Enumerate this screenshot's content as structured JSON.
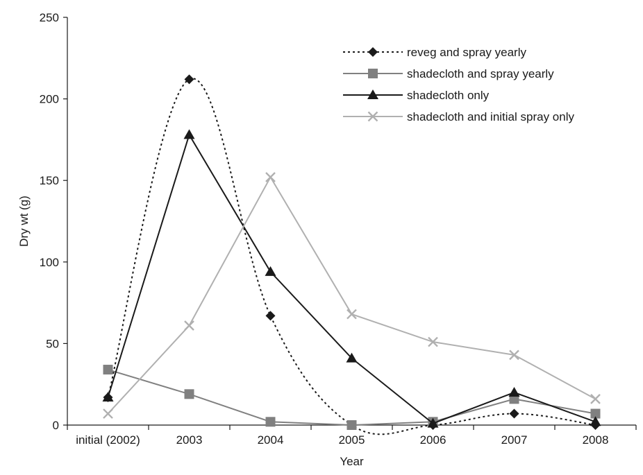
{
  "chart_data": {
    "type": "line",
    "title": "",
    "xlabel": "Year",
    "ylabel": "Dry wt (g)",
    "categories": [
      "initial (2002)",
      "2003",
      "2004",
      "2005",
      "2006",
      "2007",
      "2008"
    ],
    "ylim": [
      0,
      250
    ],
    "yticks": [
      "0",
      "50",
      "100",
      "150",
      "200",
      "250"
    ],
    "grid": false,
    "legend_position": "top-right",
    "series": [
      {
        "name": "reveg and spray yearly",
        "color": "#1a1a1a",
        "line_style": "dotted",
        "marker": "diamond",
        "values": [
          17,
          212,
          67,
          0,
          0,
          7,
          0
        ]
      },
      {
        "name": "shadecloth and spray yearly",
        "color": "#808080",
        "line_style": "solid",
        "marker": "square",
        "values": [
          34,
          19,
          2,
          0,
          2,
          16,
          7
        ]
      },
      {
        "name": "shadecloth only",
        "color": "#1a1a1a",
        "line_style": "solid",
        "marker": "triangle",
        "values": [
          17,
          178,
          94,
          41,
          1,
          20,
          2
        ]
      },
      {
        "name": "shadecloth and initial spray only",
        "color": "#b0b0b0",
        "line_style": "solid",
        "marker": "x",
        "values": [
          7,
          61,
          152,
          68,
          51,
          43,
          16
        ]
      }
    ]
  }
}
